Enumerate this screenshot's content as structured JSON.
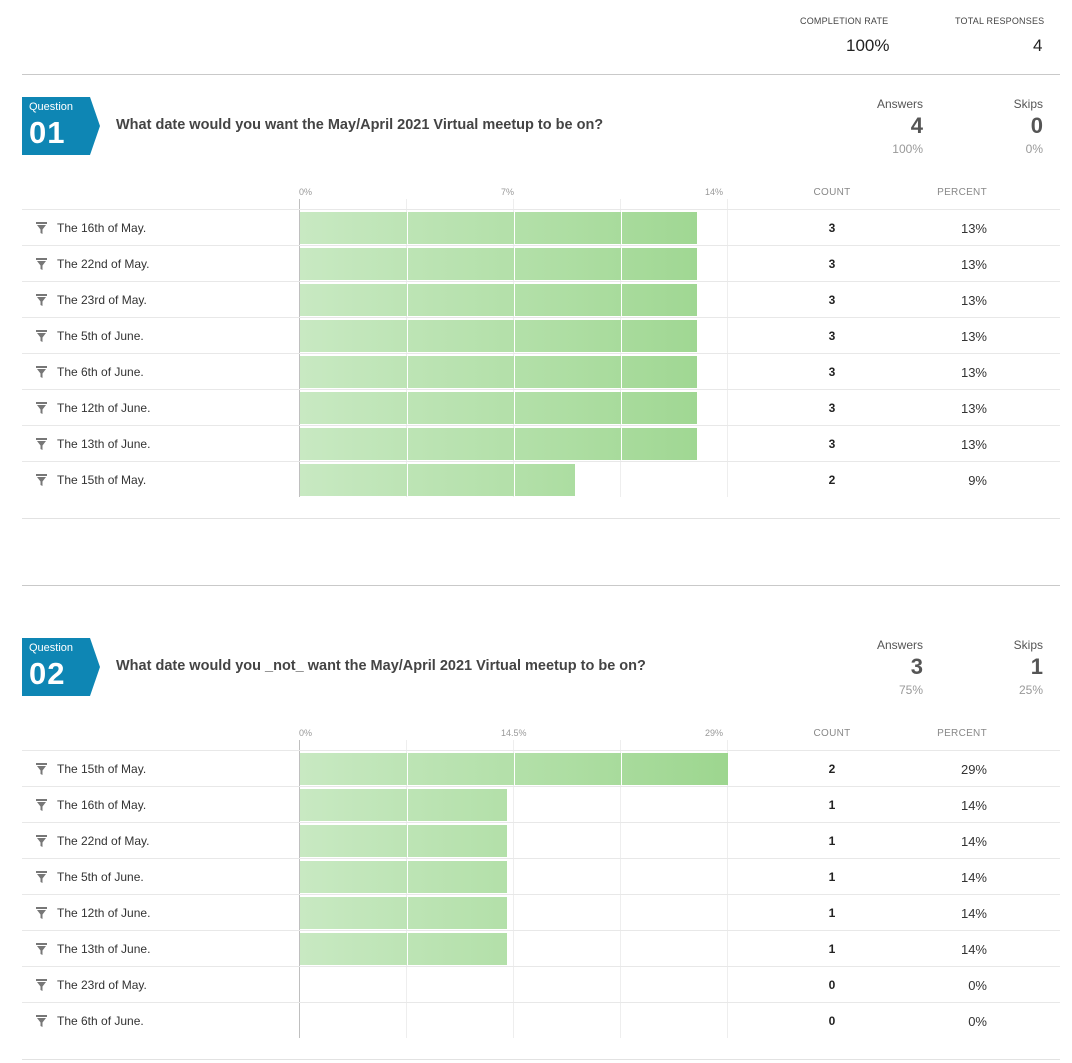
{
  "summary": {
    "completion_rate_label": "COMPLETION RATE",
    "completion_rate_value": "100%",
    "total_responses_label": "TOTAL RESPONSES",
    "total_responses_value": "4"
  },
  "questions": [
    {
      "badge_label": "Question",
      "badge_number": "01",
      "title": "What date would you want the May/April 2021 Virtual meetup to be on?",
      "answers_label": "Answers",
      "answers_count": "4",
      "answers_pct": "100%",
      "skips_label": "Skips",
      "skips_count": "0",
      "skips_pct": "0%",
      "headers": {
        "count": "COUNT",
        "percent": "PERCENT"
      },
      "chart_data": {
        "type": "bar",
        "orientation": "horizontal",
        "axis_ticks": [
          "0%",
          "7%",
          "14%"
        ],
        "xlim": [
          0,
          14
        ],
        "categories": [
          "The 16th of May.",
          "The 22nd of May.",
          "The 23rd of May.",
          "The 5th of June.",
          "The 6th of June.",
          "The 12th of June.",
          "The 13th of June.",
          "The 15th of May."
        ],
        "counts": [
          3,
          3,
          3,
          3,
          3,
          3,
          3,
          2
        ],
        "values": [
          13,
          13,
          13,
          13,
          13,
          13,
          13,
          9
        ],
        "value_labels": [
          "13%",
          "13%",
          "13%",
          "13%",
          "13%",
          "13%",
          "13%",
          "9%"
        ]
      }
    },
    {
      "badge_label": "Question",
      "badge_number": "02",
      "title": "What date would you _not_ want the May/April 2021 Virtual meetup to be on?",
      "answers_label": "Answers",
      "answers_count": "3",
      "answers_pct": "75%",
      "skips_label": "Skips",
      "skips_count": "1",
      "skips_pct": "25%",
      "headers": {
        "count": "COUNT",
        "percent": "PERCENT"
      },
      "chart_data": {
        "type": "bar",
        "orientation": "horizontal",
        "axis_ticks": [
          "0%",
          "14.5%",
          "29%"
        ],
        "xlim": [
          0,
          29
        ],
        "categories": [
          "The 15th of May.",
          "The 16th of May.",
          "The 22nd of May.",
          "The 5th of June.",
          "The 12th of June.",
          "The 13th of June.",
          "The 23rd of May.",
          "The 6th of June."
        ],
        "counts": [
          2,
          1,
          1,
          1,
          1,
          1,
          0,
          0
        ],
        "values": [
          29,
          14,
          14,
          14,
          14,
          14,
          0,
          0
        ],
        "value_labels": [
          "29%",
          "14%",
          "14%",
          "14%",
          "14%",
          "14%",
          "0%",
          "0%"
        ]
      }
    }
  ],
  "colors": {
    "badge": "#0e86b4",
    "bar_light": "#c8e9c2",
    "bar_dark": "#9dd68f",
    "divider": "#c9c9c9"
  },
  "icons": {
    "row_filter": "filter-icon"
  }
}
